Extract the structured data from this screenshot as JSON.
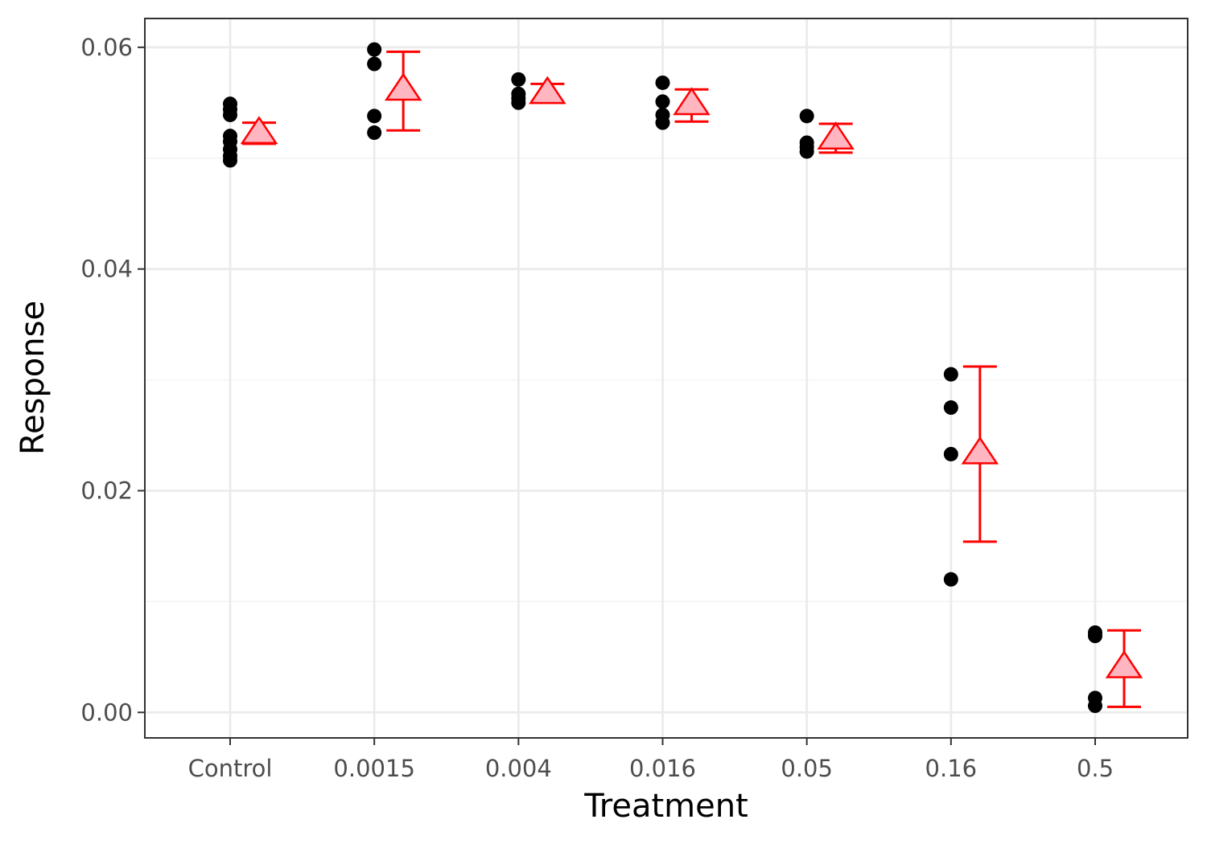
{
  "chart_data": {
    "type": "scatter",
    "title": "",
    "xlabel": "Treatment",
    "ylabel": "Response",
    "categories": [
      "Control",
      "0.0015",
      "0.004",
      "0.016",
      "0.05",
      "0.16",
      "0.5"
    ],
    "ylim": [
      -0.0023,
      0.0626
    ],
    "yticks": [
      0.0,
      0.02,
      0.04,
      0.06
    ],
    "ytick_labels": [
      "0.00",
      "0.02",
      "0.04",
      "0.06"
    ],
    "grid": true,
    "legend": "none",
    "observations": [
      {
        "category": "Control",
        "values": [
          0.0549,
          0.0544,
          0.0539,
          0.052,
          0.0515,
          0.0508,
          0.0502,
          0.0498
        ]
      },
      {
        "category": "0.0015",
        "values": [
          0.0598,
          0.0585,
          0.0538,
          0.0523
        ]
      },
      {
        "category": "0.004",
        "values": [
          0.0571,
          0.0558,
          0.0554,
          0.055
        ]
      },
      {
        "category": "0.016",
        "values": [
          0.0568,
          0.0551,
          0.0539,
          0.0532
        ]
      },
      {
        "category": "0.05",
        "values": [
          0.0538,
          0.0514,
          0.051,
          0.0506
        ]
      },
      {
        "category": "0.16",
        "values": [
          0.0305,
          0.0275,
          0.0233,
          0.012
        ]
      },
      {
        "category": "0.5",
        "values": [
          0.0072,
          0.0069,
          0.0013,
          0.0006
        ]
      }
    ],
    "summary": [
      {
        "category": "Control",
        "mean": 0.0522,
        "lower": 0.0513,
        "upper": 0.0532
      },
      {
        "category": "0.0015",
        "mean": 0.0561,
        "lower": 0.0525,
        "upper": 0.0596
      },
      {
        "category": "0.004",
        "mean": 0.0558,
        "lower": 0.055,
        "upper": 0.0567
      },
      {
        "category": "0.016",
        "mean": 0.0548,
        "lower": 0.0533,
        "upper": 0.0562
      },
      {
        "category": "0.05",
        "mean": 0.0517,
        "lower": 0.0505,
        "upper": 0.0531
      },
      {
        "category": "0.16",
        "mean": 0.0233,
        "lower": 0.0154,
        "upper": 0.0312
      },
      {
        "category": "0.5",
        "mean": 0.004,
        "lower": 0.0005,
        "upper": 0.0074
      }
    ],
    "colors": {
      "points": "#000000",
      "summary_line": "#ff0000",
      "summary_fill": "#ffb6c1",
      "grid_major": "#ebebeb",
      "grid_minor": "#f3f3f3",
      "panel_border": "#333333",
      "tick_text": "#4d4d4d"
    }
  }
}
